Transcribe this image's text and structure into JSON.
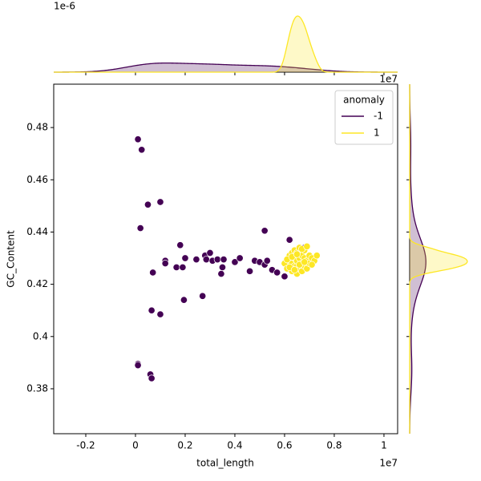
{
  "chart_data": {
    "type": "scatter",
    "x_label": "total_length",
    "y_label": "GC_Content",
    "x_offset_label": "1e7",
    "marginal_offset_label": "1e-6",
    "legend_title": "anomaly",
    "legend_position": "upper right",
    "xlim": [
      -0.329,
      1.055
    ],
    "xticks": [
      -0.2,
      0.0,
      0.2,
      0.4,
      0.6,
      0.8,
      1.0
    ],
    "ylim": [
      0.3628,
      0.4966
    ],
    "yticks": [
      0.38,
      0.4,
      0.42,
      0.44,
      0.46,
      0.48
    ],
    "series": [
      {
        "name": "-1",
        "color": "#440154",
        "x": [
          0.01,
          0.025,
          0.05,
          0.1,
          0.02,
          0.12,
          0.12,
          0.07,
          0.165,
          0.18,
          0.19,
          0.2,
          0.245,
          0.28,
          0.285,
          0.3,
          0.31,
          0.33,
          0.345,
          0.35,
          0.355,
          0.4,
          0.42,
          0.46,
          0.48,
          0.5,
          0.52,
          0.52,
          0.55,
          0.57,
          0.6,
          0.62,
          0.065,
          0.1,
          0.195,
          0.27,
          0.01,
          0.01,
          0.06,
          0.065,
          0.7,
          0.68,
          0.69,
          0.53
        ],
        "values": [
          0.4755,
          0.4715,
          0.4505,
          0.4515,
          0.4415,
          0.429,
          0.428,
          0.4245,
          0.4265,
          0.435,
          0.4265,
          0.43,
          0.4295,
          0.431,
          0.4295,
          0.432,
          0.429,
          0.4295,
          0.424,
          0.4265,
          0.4295,
          0.4285,
          0.43,
          0.425,
          0.429,
          0.4285,
          0.4405,
          0.4275,
          0.4255,
          0.4245,
          0.423,
          0.437,
          0.41,
          0.4085,
          0.414,
          0.4155,
          0.3895,
          0.389,
          0.3855,
          0.384,
          0.431,
          0.434,
          0.427,
          0.429
        ]
      },
      {
        "name": "1",
        "color": "#fde725",
        "x": [
          0.6,
          0.61,
          0.62,
          0.62,
          0.63,
          0.63,
          0.63,
          0.64,
          0.64,
          0.64,
          0.65,
          0.65,
          0.65,
          0.65,
          0.66,
          0.66,
          0.66,
          0.67,
          0.67,
          0.67,
          0.68,
          0.68,
          0.68,
          0.69,
          0.69,
          0.7,
          0.7,
          0.71,
          0.72,
          0.73,
          0.62,
          0.64,
          0.66,
          0.68,
          0.61,
          0.63,
          0.65,
          0.67,
          0.69,
          0.71
        ],
        "values": [
          0.428,
          0.426,
          0.429,
          0.431,
          0.425,
          0.428,
          0.432,
          0.427,
          0.43,
          0.433,
          0.424,
          0.427,
          0.429,
          0.432,
          0.426,
          0.43,
          0.434,
          0.425,
          0.428,
          0.431,
          0.427,
          0.43,
          0.433,
          0.426,
          0.429,
          0.428,
          0.431,
          0.43,
          0.429,
          0.431,
          0.4265,
          0.4255,
          0.4275,
          0.4285,
          0.4295,
          0.4305,
          0.4315,
          0.4335,
          0.4345,
          0.4275
        ]
      }
    ]
  }
}
